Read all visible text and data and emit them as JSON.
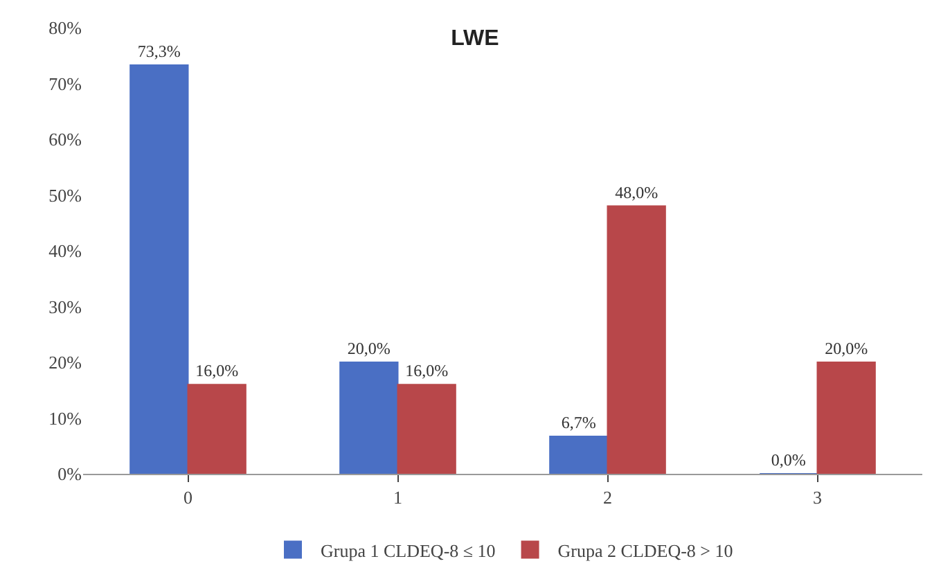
{
  "chart_data": {
    "type": "bar",
    "title": "LWE",
    "categories": [
      "0",
      "1",
      "2",
      "3"
    ],
    "series": [
      {
        "name": "Grupa 1 CLDEQ-8 ≤ 10",
        "color": "#4a6fc4",
        "values": [
          73.3,
          20.0,
          6.7,
          0.0
        ],
        "value_labels": [
          "73,3%",
          "20,0%",
          "6,7%",
          "0,0%"
        ]
      },
      {
        "name": "Grupa 2 CLDEQ-8 > 10",
        "color": "#b8474a",
        "values": [
          16.0,
          16.0,
          48.0,
          20.0
        ],
        "value_labels": [
          "16,0%",
          "16,0%",
          "48,0%",
          "20,0%"
        ]
      }
    ],
    "ylim": [
      0,
      80
    ],
    "yticks": [
      {
        "value": 0,
        "label": "0%"
      },
      {
        "value": 10,
        "label": "10%"
      },
      {
        "value": 20,
        "label": "20%"
      },
      {
        "value": 30,
        "label": "30%"
      },
      {
        "value": 40,
        "label": "40%"
      },
      {
        "value": 50,
        "label": "50%"
      },
      {
        "value": 60,
        "label": "60%"
      },
      {
        "value": 70,
        "label": "70%"
      },
      {
        "value": 80,
        "label": "80%"
      }
    ],
    "grid": false,
    "legend": "bottom"
  }
}
